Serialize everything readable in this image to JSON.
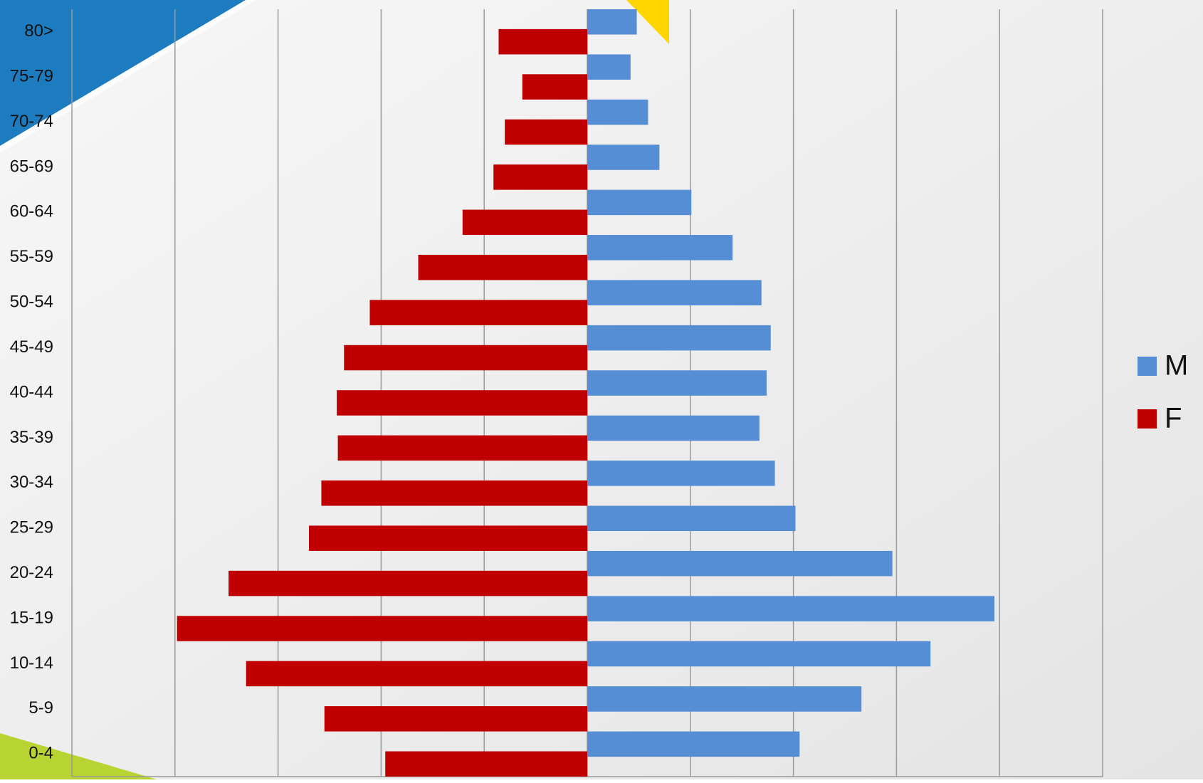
{
  "chart_data": {
    "type": "bar",
    "orientation": "horizontal",
    "layout": "pyramid",
    "categories": [
      "80>",
      "75-79",
      "70-74",
      "65-69",
      "60-64",
      "55-59",
      "50-54",
      "45-49",
      "40-44",
      "35-39",
      "30-34",
      "25-29",
      "20-24",
      "15-19",
      "10-14",
      "5-9",
      "0-4"
    ],
    "series": [
      {
        "name": "M",
        "color": "#558ed5",
        "values": [
          0.48,
          0.42,
          0.59,
          0.7,
          1.01,
          1.41,
          1.69,
          1.78,
          1.74,
          1.67,
          1.82,
          2.02,
          2.96,
          3.95,
          3.33,
          2.66,
          2.06
        ]
      },
      {
        "name": "F",
        "color": "#c00000",
        "values": [
          -0.86,
          -0.63,
          -0.8,
          -0.91,
          -1.21,
          -1.64,
          -2.11,
          -2.36,
          -2.43,
          -2.42,
          -2.58,
          -2.7,
          -3.48,
          -3.98,
          -3.31,
          -2.55,
          -1.96
        ]
      }
    ],
    "xlim": [
      -5,
      5
    ],
    "xticks": [
      -5,
      -4,
      -3,
      -2,
      -1,
      0,
      1,
      2,
      3,
      4,
      5
    ],
    "xtick_labels": false,
    "grid": true,
    "legend": "right"
  }
}
